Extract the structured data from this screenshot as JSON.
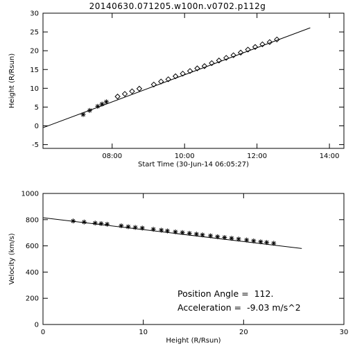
{
  "title": "20140630.071205.w100n.v0702.p112g",
  "chart_data": [
    {
      "type": "scatter",
      "xlabel": "Start Time (30-Jun-14 06:05:27)",
      "ylabel": "Height (R/Rsun)",
      "x_unit": "hours",
      "xlim": [
        6.09,
        14.4
      ],
      "ylim": [
        -6,
        30
      ],
      "xticks": [
        {
          "value": 8,
          "label": "08:00"
        },
        {
          "value": 10,
          "label": "10:00"
        },
        {
          "value": 12,
          "label": "12:00"
        },
        {
          "value": 14,
          "label": "14:00"
        }
      ],
      "yticks": [
        -5,
        0,
        5,
        10,
        15,
        20,
        25,
        30
      ],
      "fit_line": {
        "x": [
          6.09,
          13.47
        ],
        "y": [
          -0.5,
          26.1
        ]
      },
      "series": [
        {
          "marker": "asterisk",
          "points": [
            {
              "x": 7.2,
              "y": 3.0
            },
            {
              "x": 7.38,
              "y": 4.1
            },
            {
              "x": 7.6,
              "y": 5.2
            },
            {
              "x": 7.72,
              "y": 5.8
            },
            {
              "x": 7.84,
              "y": 6.4
            }
          ]
        },
        {
          "marker": "diamond",
          "points": [
            {
              "x": 8.15,
              "y": 7.8
            },
            {
              "x": 8.35,
              "y": 8.5
            },
            {
              "x": 8.55,
              "y": 9.2
            },
            {
              "x": 8.75,
              "y": 9.9
            },
            {
              "x": 9.15,
              "y": 11.0
            },
            {
              "x": 9.35,
              "y": 11.8
            },
            {
              "x": 9.55,
              "y": 12.4
            },
            {
              "x": 9.75,
              "y": 13.2
            },
            {
              "x": 9.95,
              "y": 13.9
            },
            {
              "x": 10.15,
              "y": 14.6
            },
            {
              "x": 10.35,
              "y": 15.3
            },
            {
              "x": 10.55,
              "y": 15.9
            },
            {
              "x": 10.75,
              "y": 16.7
            },
            {
              "x": 10.95,
              "y": 17.4
            },
            {
              "x": 11.15,
              "y": 18.1
            },
            {
              "x": 11.35,
              "y": 18.8
            },
            {
              "x": 11.55,
              "y": 19.5
            },
            {
              "x": 11.75,
              "y": 20.3
            },
            {
              "x": 11.95,
              "y": 21.0
            },
            {
              "x": 12.15,
              "y": 21.7
            },
            {
              "x": 12.35,
              "y": 22.3
            },
            {
              "x": 12.55,
              "y": 23.0
            }
          ]
        }
      ]
    },
    {
      "type": "scatter",
      "xlabel": "Height (R/Rsun)",
      "ylabel": "Velocity (km/s)",
      "xlim": [
        0,
        30
      ],
      "ylim": [
        0,
        1000
      ],
      "xticks": [
        0,
        10,
        20,
        30
      ],
      "yticks": [
        0,
        200,
        400,
        600,
        800,
        1000
      ],
      "fit_line": {
        "x": [
          0,
          25.8
        ],
        "y": [
          815,
          580
        ]
      },
      "series": [
        {
          "marker": "asterisk",
          "points": [
            {
              "x": 3.0,
              "y": 790
            },
            {
              "x": 4.1,
              "y": 782
            },
            {
              "x": 5.2,
              "y": 774
            },
            {
              "x": 5.8,
              "y": 770
            },
            {
              "x": 6.4,
              "y": 765
            },
            {
              "x": 7.8,
              "y": 753
            },
            {
              "x": 8.5,
              "y": 746
            },
            {
              "x": 9.2,
              "y": 741
            },
            {
              "x": 9.9,
              "y": 736
            },
            {
              "x": 11.0,
              "y": 727
            },
            {
              "x": 11.8,
              "y": 720
            },
            {
              "x": 12.4,
              "y": 714
            },
            {
              "x": 13.2,
              "y": 707
            },
            {
              "x": 13.9,
              "y": 702
            },
            {
              "x": 14.6,
              "y": 696
            },
            {
              "x": 15.3,
              "y": 690
            },
            {
              "x": 15.9,
              "y": 684
            },
            {
              "x": 16.7,
              "y": 677
            },
            {
              "x": 17.4,
              "y": 670
            },
            {
              "x": 18.1,
              "y": 664
            },
            {
              "x": 18.8,
              "y": 658
            },
            {
              "x": 19.5,
              "y": 652
            },
            {
              "x": 20.3,
              "y": 645
            },
            {
              "x": 21.0,
              "y": 638
            },
            {
              "x": 21.7,
              "y": 631
            },
            {
              "x": 22.3,
              "y": 626
            },
            {
              "x": 23.0,
              "y": 620
            }
          ]
        }
      ],
      "annotations": [
        "Position Angle =  112.",
        "Acceleration =  -9.03 m/s^2"
      ]
    }
  ]
}
